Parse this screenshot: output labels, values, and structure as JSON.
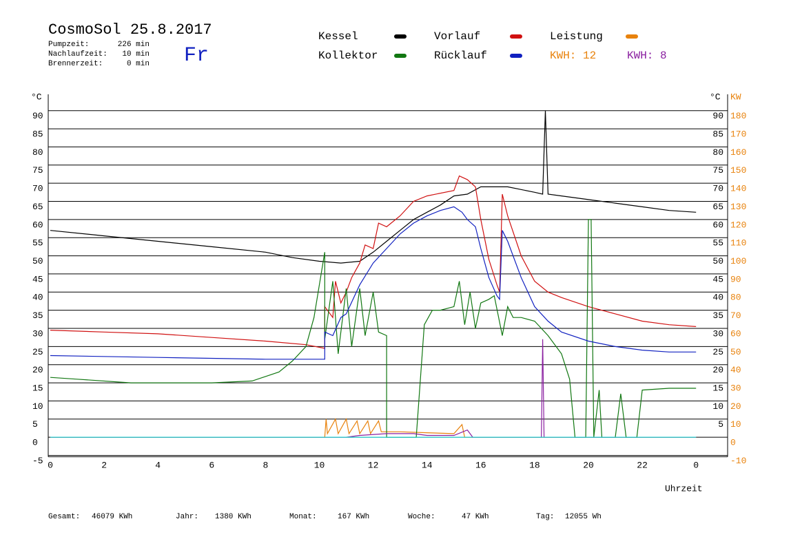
{
  "chart_data": {
    "type": "line",
    "title": "CosmoSol 25.8.2017",
    "weekday": "Fr",
    "stats": [
      {
        "label": "Pumpzeit:",
        "value": "226 min"
      },
      {
        "label": "Nachlaufzeit:",
        "value": "10 min"
      },
      {
        "label": "Brennerzeit:",
        "value": "0 min"
      }
    ],
    "y_label": "°C",
    "y_right_label": "°C",
    "y2_label": "KW",
    "x_label": "Uhrzeit",
    "kwh_labels": [
      {
        "text": "KWH: 12",
        "color": "#e8820c"
      },
      {
        "text": "KWH: 8",
        "color": "#8a1fa0"
      }
    ],
    "xlim": [
      0,
      24.5
    ],
    "xticks": [
      0,
      2,
      4,
      6,
      8,
      10,
      12,
      14,
      16,
      18,
      20,
      22,
      {
        "value": 24,
        "label": "0"
      }
    ],
    "ylim": [
      -5,
      94.5
    ],
    "yticks": [
      -5,
      0,
      5,
      10,
      15,
      20,
      25,
      30,
      35,
      40,
      45,
      50,
      55,
      60,
      65,
      70,
      75,
      80,
      85,
      90
    ],
    "yticks_right": [
      5,
      10,
      15,
      20,
      25,
      30,
      35,
      40,
      45,
      50,
      55,
      60,
      65,
      70,
      75,
      80,
      85,
      90
    ],
    "y2lim": [
      -10,
      189
    ],
    "y2ticks": [
      -10,
      0,
      10,
      20,
      30,
      40,
      50,
      60,
      70,
      80,
      90,
      100,
      110,
      120,
      130,
      140,
      150,
      160,
      170,
      180
    ],
    "grid": true,
    "series": [
      {
        "name": "Kessel",
        "color": "#000000",
        "x": [
          0,
          2,
          4,
          6,
          8,
          9,
          10,
          10.8,
          11.5,
          12,
          12.5,
          13,
          13.5,
          14,
          14.5,
          15,
          15.5,
          16,
          16.5,
          17,
          18,
          18.3,
          18.4,
          18.5,
          19,
          20,
          21,
          22,
          23,
          24
        ],
        "values": [
          57,
          55.5,
          54,
          52.5,
          51,
          49.5,
          48.5,
          48,
          48.5,
          51,
          54,
          57,
          60,
          62,
          64,
          66.5,
          67,
          69,
          69,
          69,
          67.5,
          67,
          90,
          67,
          66.5,
          65.5,
          64.5,
          63.5,
          62.5,
          62
        ]
      },
      {
        "name": "Vorlauf",
        "color": "#d01010",
        "x": [
          0,
          2,
          4,
          6,
          8,
          9.5,
          10.2,
          10.2,
          10.5,
          10.6,
          10.8,
          11,
          11.2,
          11.5,
          11.7,
          12,
          12.2,
          12.5,
          13,
          13.5,
          14,
          15,
          15.2,
          15.5,
          15.8,
          16,
          16.3,
          16.6,
          16.7,
          16.8,
          17,
          17.5,
          18,
          18.5,
          19,
          20,
          21,
          22,
          23,
          24
        ],
        "values": [
          29.5,
          29,
          28.5,
          27.5,
          26.5,
          25.5,
          24.5,
          36,
          33,
          43,
          37,
          40,
          44,
          48,
          53,
          52,
          59,
          58,
          61,
          65,
          66.5,
          68,
          72,
          71,
          69,
          60,
          49,
          42,
          40,
          67,
          61,
          50,
          43,
          40,
          38.5,
          36,
          34,
          32,
          31,
          30.5
        ]
      },
      {
        "name": "Leistung",
        "color": "#e8820c",
        "axis": "y2",
        "x": [
          0,
          10.2,
          10.25,
          10.3,
          10.6,
          10.7,
          11,
          11.1,
          11.4,
          11.5,
          11.8,
          11.9,
          12.2,
          12.3,
          13,
          14,
          15,
          15.3,
          15.4,
          16,
          24
        ],
        "values": [
          0,
          0,
          10,
          2,
          10,
          2,
          10,
          2,
          9,
          2,
          9,
          2,
          9,
          3,
          3,
          2.5,
          2,
          7,
          0,
          0,
          0
        ]
      },
      {
        "name": "Kollektor",
        "color": "#117711",
        "x": [
          0,
          1,
          3,
          6,
          7.5,
          8.5,
          9,
          9.5,
          9.8,
          10,
          10.2,
          10.2,
          10.5,
          10.7,
          11,
          11.2,
          11.5,
          11.7,
          12,
          12.2,
          12.5,
          12.5,
          13.6,
          13.9,
          14.2,
          14.5,
          15,
          15.2,
          15.4,
          15.6,
          15.8,
          16,
          16.3,
          16.5,
          16.8,
          17,
          17.2,
          17.5,
          18,
          18.5,
          19,
          19.3,
          19.5,
          19.9,
          20,
          20.1,
          20.2,
          20.4,
          20.5,
          21,
          21.2,
          21.4,
          21.8,
          22,
          23,
          24
        ],
        "values": [
          16.5,
          16,
          15,
          15,
          15.5,
          18,
          21,
          25,
          33,
          42,
          51,
          27,
          43,
          23,
          41,
          25,
          41,
          28,
          40,
          29,
          28,
          0,
          0,
          31,
          35,
          35,
          36,
          43,
          31,
          40,
          30,
          37,
          38,
          39,
          28,
          36,
          33,
          33,
          32,
          28,
          23,
          16,
          0,
          0,
          60,
          60,
          0,
          13,
          0,
          0,
          12,
          0,
          0,
          13,
          13.5,
          13.5
        ]
      },
      {
        "name": "Rücklauf",
        "color": "#1020c0",
        "x": [
          0,
          4,
          8,
          10.2,
          10.2,
          10.5,
          10.8,
          11,
          11.5,
          12,
          12.5,
          13,
          13.5,
          14,
          14.5,
          15,
          15.3,
          15.5,
          15.8,
          16,
          16.3,
          16.6,
          16.7,
          16.8,
          17,
          17.5,
          18,
          18.5,
          19,
          20,
          21,
          22,
          23,
          24
        ],
        "values": [
          22.5,
          22,
          21.5,
          21.5,
          29,
          28,
          33,
          34,
          42,
          48,
          52,
          56,
          59,
          61,
          62.5,
          63.5,
          62,
          60,
          58,
          52,
          44,
          39,
          38,
          57,
          54,
          44,
          36,
          32,
          29,
          26.5,
          25,
          24,
          23.5,
          23.5
        ]
      },
      {
        "color": "#8a1fa0",
        "axis": "y2",
        "x": [
          0,
          11,
          11.5,
          12.5,
          13.5,
          14,
          15,
          15.5,
          15.7,
          18.25,
          18.3,
          18.35,
          24
        ],
        "values": [
          0,
          0,
          1,
          2,
          2,
          1,
          1,
          4,
          0,
          0,
          54,
          0,
          0
        ]
      },
      {
        "color": "#20d0d0",
        "x": [
          0,
          24
        ],
        "values": [
          0,
          0
        ]
      }
    ],
    "footer": [
      {
        "label": "Gesamt:",
        "value": "46079 KWh"
      },
      {
        "label": "Jahr:",
        "value": "1380 KWh"
      },
      {
        "label": "Monat:",
        "value": "167 KWh"
      },
      {
        "label": "Woche:",
        "value": "47 KWh"
      },
      {
        "label": "Tag:",
        "value": "12055 Wh"
      }
    ]
  }
}
